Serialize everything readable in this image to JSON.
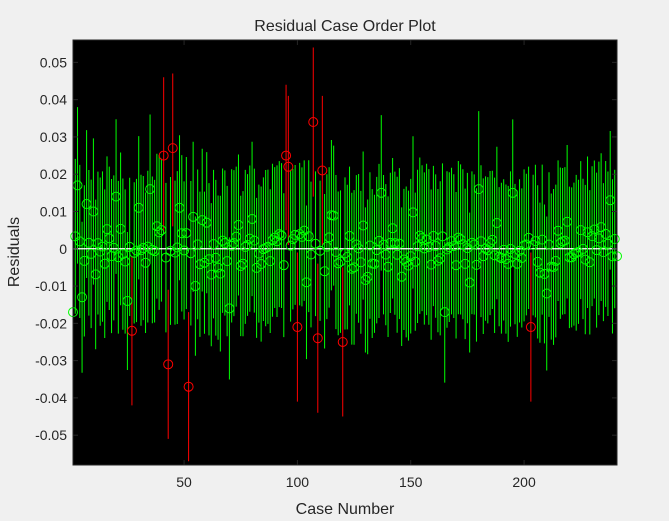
{
  "chart_data": {
    "type": "scatter",
    "title": "Residual Case Order Plot",
    "xlabel": "Case Number",
    "ylabel": "Residuals",
    "xlim": [
      1,
      241
    ],
    "ylim": [
      -0.058,
      0.056
    ],
    "xticks": [
      50,
      100,
      150,
      200
    ],
    "yticks": [
      -0.05,
      -0.04,
      -0.03,
      -0.02,
      -0.01,
      0,
      0.01,
      0.02,
      0.03,
      0.04,
      0.05
    ],
    "ytick_labels": [
      "-0.05",
      "-0.04",
      "-0.03",
      "-0.02",
      "-0.01",
      "0",
      "0.01",
      "0.02",
      "0.03",
      "0.04",
      "0.05"
    ],
    "grid": false,
    "legend": "none",
    "n_cases": 241,
    "normal_color": "#00ff00",
    "outlier_color": "#ff0000",
    "zero_line_color": "#ffffff",
    "plot_background": "#000000",
    "outliers": [
      {
        "case": 27,
        "residual": -0.022,
        "ci": [
          -0.042,
          -0.002
        ]
      },
      {
        "case": 41,
        "residual": 0.025,
        "ci": [
          0.004,
          0.046
        ]
      },
      {
        "case": 43,
        "residual": -0.031,
        "ci": [
          -0.051,
          -0.011
        ]
      },
      {
        "case": 45,
        "residual": 0.027,
        "ci": [
          0.006,
          0.047
        ]
      },
      {
        "case": 52,
        "residual": -0.037,
        "ci": [
          -0.057,
          -0.017
        ]
      },
      {
        "case": 95,
        "residual": 0.025,
        "ci": [
          0.005,
          0.044
        ]
      },
      {
        "case": 96,
        "residual": 0.022,
        "ci": [
          0.001,
          0.041
        ]
      },
      {
        "case": 100,
        "residual": -0.021,
        "ci": [
          -0.041,
          -0.001
        ]
      },
      {
        "case": 107,
        "residual": 0.034,
        "ci": [
          0.014,
          0.054
        ]
      },
      {
        "case": 109,
        "residual": -0.024,
        "ci": [
          -0.044,
          -0.004
        ]
      },
      {
        "case": 111,
        "residual": 0.021,
        "ci": [
          0.001,
          0.041
        ]
      },
      {
        "case": 120,
        "residual": -0.025,
        "ci": [
          -0.045,
          -0.005
        ]
      },
      {
        "case": 203,
        "residual": -0.021,
        "ci": [
          -0.041,
          -0.001
        ]
      }
    ],
    "residuals_sample": [
      {
        "case": 1,
        "residual": -0.017
      },
      {
        "case": 3,
        "residual": 0.017
      },
      {
        "case": 5,
        "residual": -0.013
      },
      {
        "case": 7,
        "residual": 0.012
      },
      {
        "case": 10,
        "residual": 0.01
      },
      {
        "case": 15,
        "residual": -0.004
      },
      {
        "case": 20,
        "residual": 0.014
      },
      {
        "case": 25,
        "residual": -0.014
      },
      {
        "case": 30,
        "residual": 0.011
      },
      {
        "case": 35,
        "residual": 0.016
      },
      {
        "case": 40,
        "residual": 0.005
      },
      {
        "case": 48,
        "residual": 0.011
      },
      {
        "case": 55,
        "residual": -0.01
      },
      {
        "case": 60,
        "residual": 0.007
      },
      {
        "case": 70,
        "residual": -0.016
      },
      {
        "case": 80,
        "residual": 0.008
      },
      {
        "case": 90,
        "residual": 0.003
      },
      {
        "case": 104,
        "residual": -0.009
      },
      {
        "case": 115,
        "residual": 0.009
      },
      {
        "case": 125,
        "residual": -0.005
      },
      {
        "case": 137,
        "residual": 0.015
      },
      {
        "case": 150,
        "residual": -0.002
      },
      {
        "case": 165,
        "residual": -0.017
      },
      {
        "case": 180,
        "residual": 0.016
      },
      {
        "case": 195,
        "residual": 0.015
      },
      {
        "case": 210,
        "residual": -0.012
      },
      {
        "case": 225,
        "residual": 0.005
      },
      {
        "case": 238,
        "residual": 0.013
      },
      {
        "case": 241,
        "residual": -0.002
      }
    ]
  }
}
